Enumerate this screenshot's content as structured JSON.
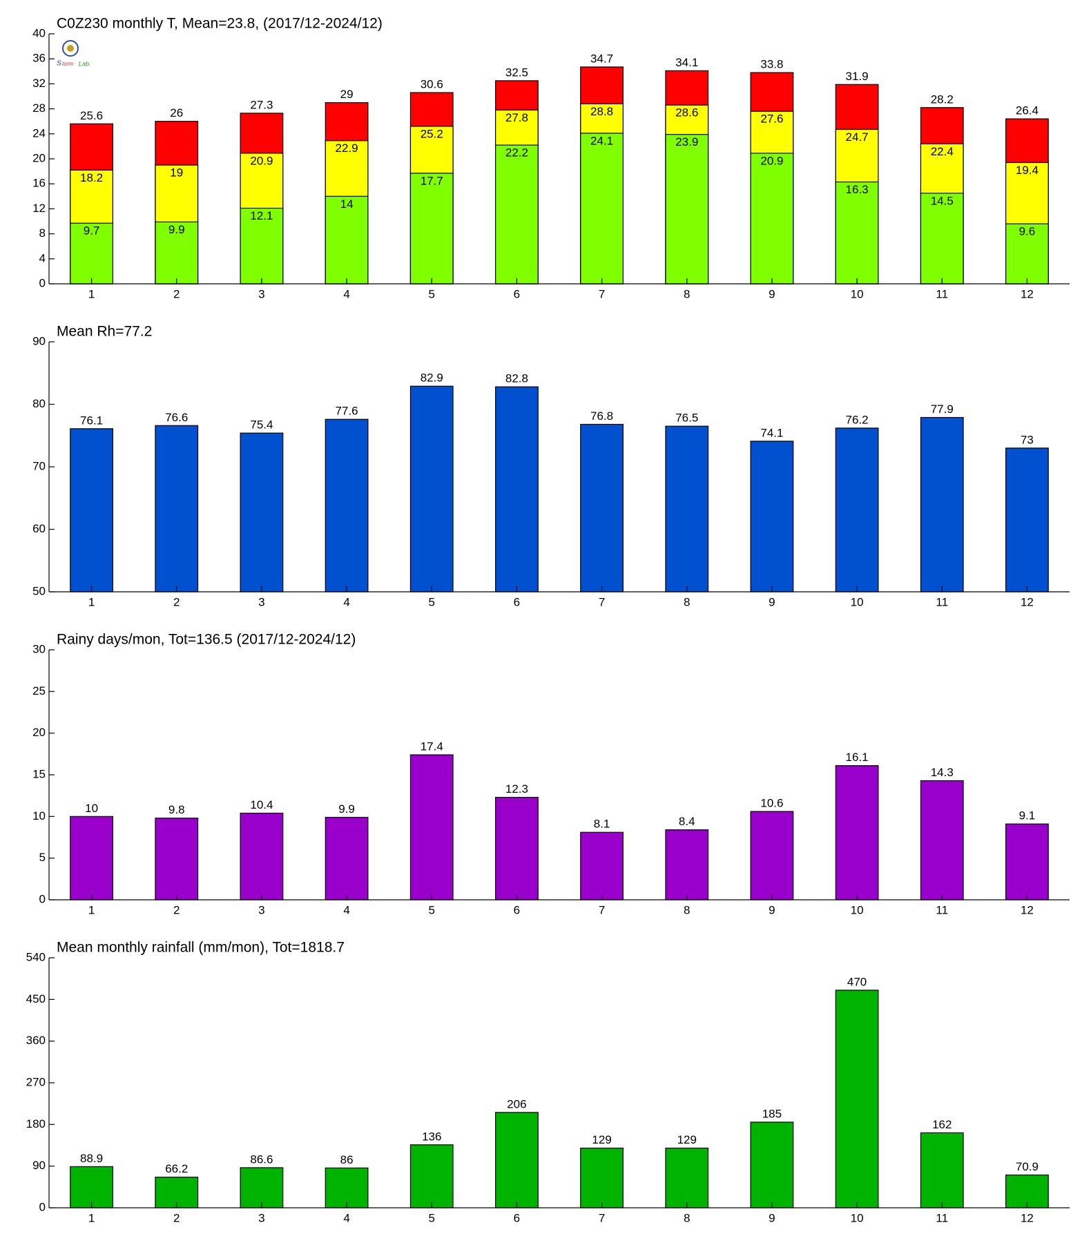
{
  "chart_data": [
    {
      "type": "overlap-bar",
      "title": "C0Z230 monthly T, Mean=23.8, (2017/12-2024/12)",
      "categories": [
        "1",
        "2",
        "3",
        "4",
        "5",
        "6",
        "7",
        "8",
        "9",
        "10",
        "11",
        "12"
      ],
      "series": [
        {
          "color": "#ff0000",
          "values": [
            25.6,
            26,
            27.3,
            29,
            30.6,
            32.5,
            34.7,
            34.1,
            33.8,
            31.9,
            28.2,
            26.4
          ]
        },
        {
          "color": "#ffff00",
          "values": [
            18.2,
            19,
            20.9,
            22.9,
            25.2,
            27.8,
            28.8,
            28.6,
            27.6,
            24.7,
            22.4,
            19.4
          ]
        },
        {
          "color": "#80ff00",
          "values": [
            9.7,
            9.9,
            12.1,
            14,
            17.7,
            22.2,
            24.1,
            23.9,
            20.9,
            16.3,
            14.5,
            9.6
          ]
        }
      ],
      "ylim": [
        0,
        40
      ],
      "yticks": [
        0,
        4,
        8,
        12,
        16,
        20,
        24,
        28,
        32,
        36,
        40
      ]
    },
    {
      "type": "bar",
      "title": "Mean Rh=77.2",
      "categories": [
        "1",
        "2",
        "3",
        "4",
        "5",
        "6",
        "7",
        "8",
        "9",
        "10",
        "11",
        "12"
      ],
      "values": [
        76.1,
        76.6,
        75.4,
        77.6,
        82.9,
        82.8,
        76.8,
        76.5,
        74.1,
        76.2,
        77.9,
        73
      ],
      "color": "#0050d0",
      "ylim": [
        50,
        90
      ],
      "yticks": [
        50,
        60,
        70,
        80,
        90
      ]
    },
    {
      "type": "bar",
      "title": "Rainy days/mon, Tot=136.5 (2017/12-2024/12)",
      "categories": [
        "1",
        "2",
        "3",
        "4",
        "5",
        "6",
        "7",
        "8",
        "9",
        "10",
        "11",
        "12"
      ],
      "values": [
        10,
        9.8,
        10.4,
        9.9,
        17.4,
        12.3,
        8.1,
        8.4,
        10.6,
        16.1,
        14.3,
        9.1
      ],
      "color": "#9900cc",
      "ylim": [
        0,
        30
      ],
      "yticks": [
        0,
        5,
        10,
        15,
        20,
        25,
        30
      ]
    },
    {
      "type": "bar",
      "title": "Mean monthly rainfall (mm/mon), Tot=1818.7",
      "categories": [
        "1",
        "2",
        "3",
        "4",
        "5",
        "6",
        "7",
        "8",
        "9",
        "10",
        "11",
        "12"
      ],
      "values": [
        88.9,
        66.2,
        86.6,
        86,
        136,
        206,
        129,
        129,
        185,
        470,
        162,
        70.9
      ],
      "color": "#00b300",
      "ylim": [
        0,
        540
      ],
      "yticks": [
        0,
        90,
        180,
        270,
        360,
        450,
        540
      ]
    }
  ]
}
